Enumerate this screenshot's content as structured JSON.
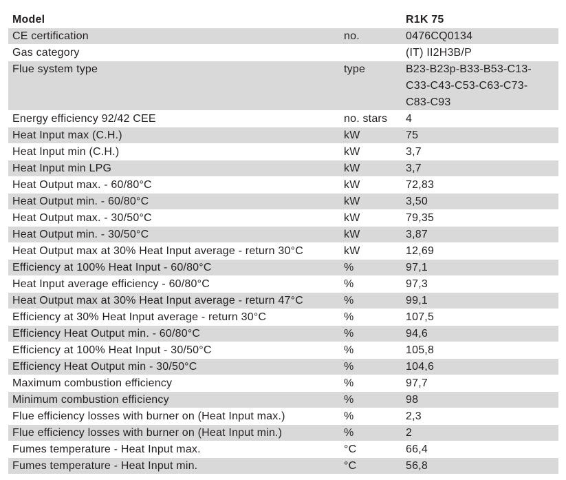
{
  "header": {
    "label": "Model",
    "value": "R1K 75"
  },
  "rows": [
    {
      "label": "CE certification",
      "unit": "no.",
      "value": "0476CQ0134"
    },
    {
      "label": "Gas category",
      "value": "(IT) II2H3B/P"
    },
    {
      "label": "Flue system type",
      "unit": "type",
      "value": [
        "B23-B23p-B33-B53-C13-",
        "C33-C43-C53-C63-C73-",
        "C83-C93"
      ]
    },
    {
      "label": "Energy efficiency 92/42 CEE",
      "unit": "no. stars",
      "value": "4"
    },
    {
      "label": "Heat Input max (C.H.)",
      "unit": "kW",
      "value": "75"
    },
    {
      "label": "Heat Input min (C.H.)",
      "unit": "kW",
      "value": "3,7"
    },
    {
      "label": "Heat Input min LPG",
      "unit": "kW",
      "value": "3,7"
    },
    {
      "label": "Heat Output max. - 60/80°C",
      "unit": "kW",
      "value": "72,83"
    },
    {
      "label": "Heat Output min. - 60/80°C",
      "unit": "kW",
      "value": "3,50"
    },
    {
      "label": "Heat Output max. - 30/50°C",
      "unit": "kW",
      "value": "79,35"
    },
    {
      "label": "Heat Output min. - 30/50°C",
      "unit": "kW",
      "value": "3,87"
    },
    {
      "label": "Heat Output max at 30% Heat Input average - return 30°C",
      "unit": "kW",
      "value": "12,69"
    },
    {
      "label": "Efficiency at 100% Heat Input  - 60/80°C",
      "unit": "%",
      "value": "97,1"
    },
    {
      "label": "Heat Input average efficiency - 60/80°C",
      "unit": "%",
      "value": "97,3"
    },
    {
      "label": "Heat Output max at 30% Heat Input average - return 47°C",
      "unit": "%",
      "value": "99,1"
    },
    {
      "label": "Efficiency at 30% Heat Input average - return 30°C",
      "unit": "%",
      "value": "107,5"
    },
    {
      "label": "Efficiency Heat Output min. - 60/80°C",
      "unit": "%",
      "value": "94,6"
    },
    {
      "label": "Efficiency at 100% Heat Input - 30/50°C",
      "unit": "%",
      "value": "105,8"
    },
    {
      "label": "Efficiency Heat Output min - 30/50°C",
      "unit": "%",
      "value": "104,6"
    },
    {
      "label": "Maximum combustion efficiency",
      "unit": "%",
      "value": "97,7"
    },
    {
      "label": "Minimum combustion efficiency",
      "unit": "%",
      "value": "98"
    },
    {
      "label": "Flue efficiency losses with burner on (Heat Input max.)",
      "unit": "%",
      "value": "2,3"
    },
    {
      "label": "Flue efficiency losses with burner on (Heat Input min.)",
      "unit": "%",
      "value": "2"
    },
    {
      "label": "Fumes temperature - Heat Input max.",
      "unit": "°C",
      "value": "66,4"
    },
    {
      "label": "Fumes temperature - Heat Input min.",
      "unit": "°C",
      "value": "56,8"
    }
  ]
}
